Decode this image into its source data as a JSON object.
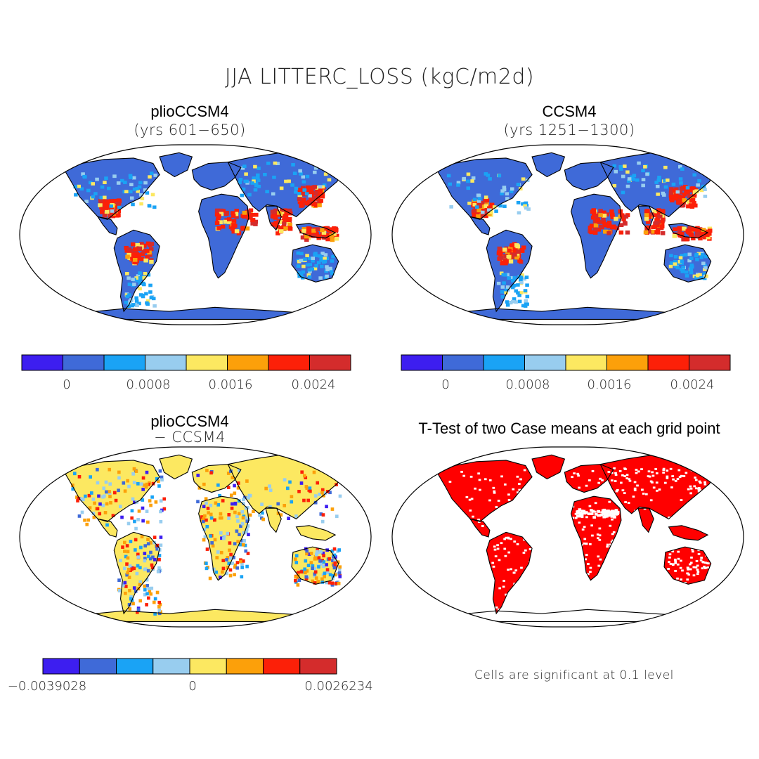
{
  "figure": {
    "title": "JJA LITTERC_LOSS (kgC/m2d)"
  },
  "palette": [
    "#3d1ef0",
    "#3f6ad8",
    "#1aa3f5",
    "#98cdef",
    "#fce861",
    "#fca00a",
    "#fc2008",
    "#d42c2c"
  ],
  "chart_data": [
    {
      "type": "heatmap",
      "title": "plioCCSM4",
      "subtitle": "(yrs 601−650)",
      "colorbar": {
        "tick_labels": [
          "0",
          "0.0008",
          "0.0016",
          "0.0024"
        ],
        "tick_values": [
          0,
          0.0008,
          0.0016,
          0.0024
        ],
        "min": -0.0004,
        "max": 0.0028,
        "n_bins": 8
      }
    },
    {
      "type": "heatmap",
      "title": "CCSM4",
      "subtitle": "(yrs 1251−1300)",
      "colorbar": {
        "tick_labels": [
          "0",
          "0.0008",
          "0.0016",
          "0.0024"
        ],
        "tick_values": [
          0,
          0.0008,
          0.0016,
          0.0024
        ],
        "min": -0.0004,
        "max": 0.0028,
        "n_bins": 8
      }
    },
    {
      "type": "heatmap",
      "title": "plioCCSM4",
      "subtitle": "− CCSM4",
      "colorbar": {
        "tick_labels": [
          "−0.0039028",
          "0",
          "0.0026234"
        ],
        "tick_values": [
          -0.0039028,
          0,
          0.0026234
        ],
        "n_bins": 8
      }
    },
    {
      "type": "heatmap",
      "title": "T-Test of two Case means at each grid point",
      "note": "Cells are significant at 0.1 level",
      "significance_level": 0.1
    }
  ]
}
